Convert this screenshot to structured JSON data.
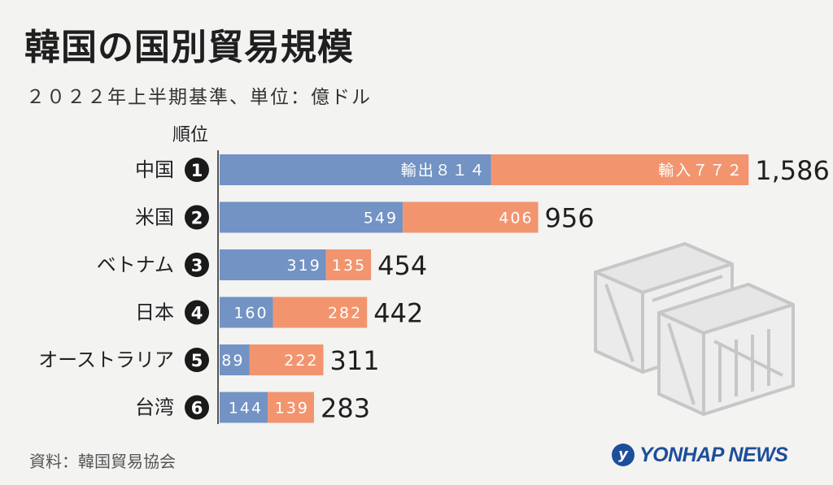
{
  "title": "韓国の国別貿易規模",
  "subtitle": "２０２２年上半期基準、単位：億ドル",
  "rank_header": "順位",
  "source": "資料：韓国貿易協会",
  "logo_text": "YONHAP NEWS",
  "colors": {
    "export": "#7293c4",
    "import": "#f2956f",
    "background": "#f3f3f2"
  },
  "icons": [
    "yonhap-logo-icon",
    "crate-icon"
  ],
  "chart_data": {
    "type": "bar",
    "orientation": "horizontal",
    "stacked": true,
    "categories": [
      "中国",
      "米国",
      "ベトナム",
      "日本",
      "オーストラリア",
      "台湾"
    ],
    "ranks": [
      "1",
      "2",
      "3",
      "4",
      "5",
      "6"
    ],
    "series": [
      {
        "name": "輸出",
        "values": [
          814,
          549,
          319,
          160,
          89,
          144
        ],
        "labels": [
          "輸出８１４",
          "549",
          "319",
          "160",
          "89",
          "144"
        ]
      },
      {
        "name": "輸入",
        "values": [
          772,
          406,
          135,
          282,
          222,
          139
        ],
        "labels": [
          "輸入７７２",
          "406",
          "135",
          "282",
          "222",
          "139"
        ]
      }
    ],
    "totals": [
      "1,586",
      "956",
      "454",
      "442",
      "311",
      "283"
    ]
  }
}
